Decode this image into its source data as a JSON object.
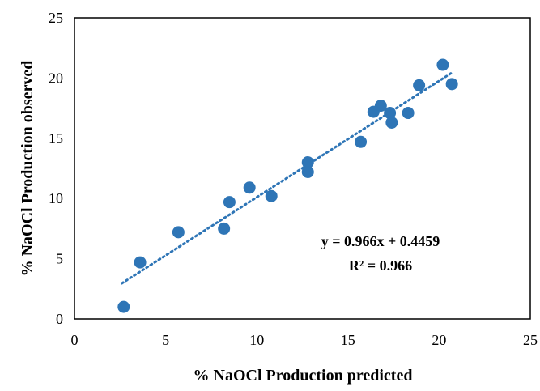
{
  "chart_data": {
    "type": "scatter",
    "xlabel": "% NaOCl Production predicted",
    "ylabel": "% NaOCl Production observed",
    "xlim": [
      0,
      25
    ],
    "ylim": [
      0,
      25
    ],
    "xticks": [
      "0",
      "5",
      "10",
      "15",
      "20",
      "25"
    ],
    "yticks": [
      "0",
      "5",
      "10",
      "15",
      "20",
      "25"
    ],
    "grid": false,
    "legend": "none",
    "marker_color": "#2e75b6",
    "trendline_color": "#2e75b6",
    "points": [
      {
        "x": 2.7,
        "y": 1.0
      },
      {
        "x": 3.6,
        "y": 4.7
      },
      {
        "x": 5.7,
        "y": 7.2
      },
      {
        "x": 8.2,
        "y": 7.5
      },
      {
        "x": 8.5,
        "y": 9.7
      },
      {
        "x": 9.6,
        "y": 10.9
      },
      {
        "x": 10.8,
        "y": 10.2
      },
      {
        "x": 12.8,
        "y": 12.2
      },
      {
        "x": 12.8,
        "y": 13.0
      },
      {
        "x": 15.7,
        "y": 14.7
      },
      {
        "x": 16.4,
        "y": 17.2
      },
      {
        "x": 16.8,
        "y": 17.7
      },
      {
        "x": 17.3,
        "y": 17.1
      },
      {
        "x": 17.4,
        "y": 16.3
      },
      {
        "x": 18.3,
        "y": 17.1
      },
      {
        "x": 18.9,
        "y": 19.4
      },
      {
        "x": 20.2,
        "y": 21.1
      },
      {
        "x": 20.7,
        "y": 19.5
      }
    ],
    "trendline": {
      "slope": 0.966,
      "intercept": 0.4459,
      "x_range": [
        2.6,
        20.7
      ],
      "equation": "y = 0.966x + 0.4459",
      "r_squared": "R² = 0.966"
    }
  }
}
